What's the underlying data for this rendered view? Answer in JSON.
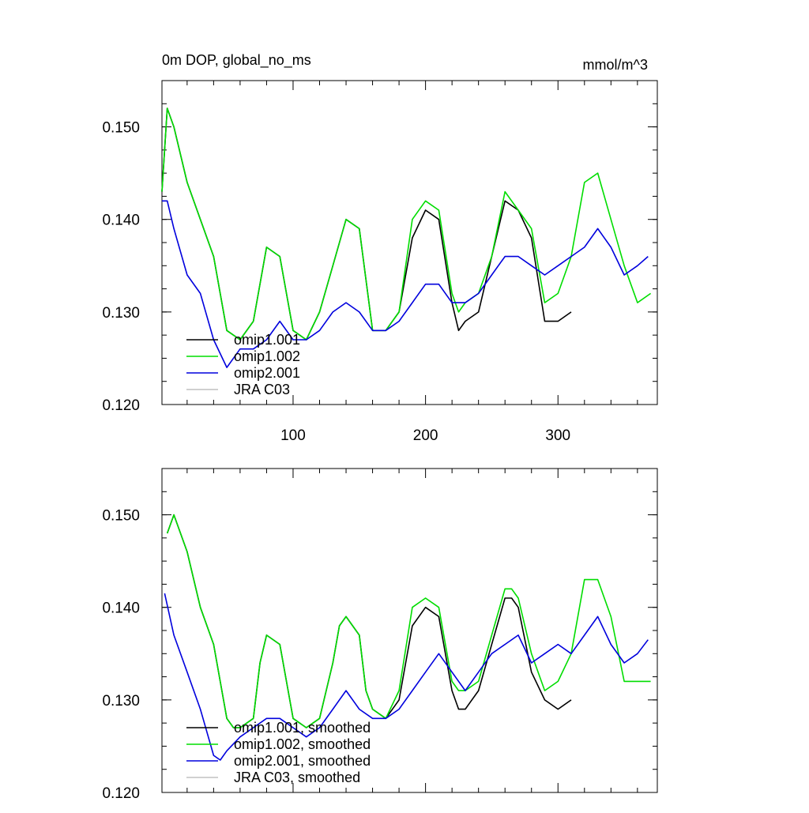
{
  "chart_data": [
    {
      "type": "line",
      "title": "0m DOP, global_no_ms",
      "units": "mmol/m^3",
      "xlim": [
        1,
        375
      ],
      "ylim": [
        0.12,
        0.155
      ],
      "x_tick_labels": [
        "100",
        "200",
        "300"
      ],
      "x_ticks": [
        100,
        200,
        300
      ],
      "y_tick_labels": [
        "0.120",
        "0.130",
        "0.140",
        "0.150"
      ],
      "y_ticks": [
        0.12,
        0.13,
        0.14,
        0.15
      ],
      "legend": {
        "placement": "bottom-left",
        "entries": [
          "omip1.001",
          "omip1.002",
          "omip2.001",
          "JRA C03"
        ]
      },
      "series": [
        {
          "name": "omip1.001",
          "color": "#000000",
          "x": [
            1,
            5,
            10,
            20,
            30,
            40,
            50,
            60,
            70,
            80,
            90,
            100,
            110,
            120,
            130,
            140,
            150,
            160,
            170,
            180,
            190,
            200,
            210,
            220,
            225,
            230,
            240,
            250,
            260,
            270,
            280,
            290,
            300,
            310
          ],
          "y": [
            0.143,
            0.152,
            0.15,
            0.144,
            0.14,
            0.136,
            0.128,
            0.127,
            0.129,
            0.137,
            0.136,
            0.128,
            0.127,
            0.13,
            0.135,
            0.14,
            0.139,
            0.128,
            0.128,
            0.13,
            0.138,
            0.141,
            0.14,
            0.131,
            0.128,
            0.129,
            0.13,
            0.136,
            0.142,
            0.141,
            0.138,
            0.129,
            0.129,
            0.13
          ]
        },
        {
          "name": "omip1.002",
          "color": "#00dd00",
          "x": [
            1,
            5,
            10,
            20,
            30,
            40,
            50,
            60,
            70,
            80,
            90,
            100,
            110,
            120,
            130,
            140,
            150,
            160,
            170,
            180,
            190,
            200,
            210,
            220,
            225,
            230,
            240,
            250,
            260,
            270,
            280,
            290,
            300,
            310,
            320,
            330,
            340,
            350,
            360,
            370
          ],
          "y": [
            0.143,
            0.152,
            0.15,
            0.144,
            0.14,
            0.136,
            0.128,
            0.127,
            0.129,
            0.137,
            0.136,
            0.128,
            0.127,
            0.13,
            0.135,
            0.14,
            0.139,
            0.128,
            0.128,
            0.13,
            0.14,
            0.142,
            0.141,
            0.132,
            0.13,
            0.131,
            0.132,
            0.136,
            0.143,
            0.141,
            0.139,
            0.131,
            0.132,
            0.136,
            0.144,
            0.145,
            0.14,
            0.135,
            0.131,
            0.132
          ]
        },
        {
          "name": "omip2.001",
          "color": "#0000dd",
          "x": [
            1,
            5,
            10,
            20,
            30,
            40,
            50,
            60,
            70,
            80,
            90,
            100,
            110,
            120,
            130,
            140,
            150,
            160,
            170,
            180,
            190,
            200,
            210,
            220,
            230,
            240,
            250,
            260,
            270,
            280,
            290,
            300,
            310,
            320,
            330,
            340,
            350,
            360,
            368
          ],
          "y": [
            0.142,
            0.142,
            0.139,
            0.134,
            0.132,
            0.127,
            0.124,
            0.126,
            0.126,
            0.127,
            0.129,
            0.127,
            0.127,
            0.128,
            0.13,
            0.131,
            0.13,
            0.128,
            0.128,
            0.129,
            0.131,
            0.133,
            0.133,
            0.131,
            0.131,
            0.132,
            0.134,
            0.136,
            0.136,
            0.135,
            0.134,
            0.135,
            0.136,
            0.137,
            0.139,
            0.137,
            0.134,
            0.135,
            0.136
          ]
        },
        {
          "name": "JRA C03",
          "color": "#c0c0c0",
          "x": [],
          "y": []
        }
      ]
    },
    {
      "type": "line",
      "title": "",
      "xlim": [
        1,
        375
      ],
      "ylim": [
        0.12,
        0.155
      ],
      "x_ticks": [
        100,
        200,
        300
      ],
      "y_tick_labels": [
        "0.120",
        "0.130",
        "0.140",
        "0.150"
      ],
      "y_ticks": [
        0.12,
        0.13,
        0.14,
        0.15
      ],
      "legend": {
        "placement": "bottom-left",
        "entries": [
          "omip1.001, smoothed",
          "omip1.002, smoothed",
          "omip2.001, smoothed",
          "JRA C03, smoothed"
        ]
      },
      "series": [
        {
          "name": "omip1.001, smoothed",
          "color": "#000000",
          "x": [
            5,
            10,
            20,
            30,
            40,
            50,
            55,
            60,
            70,
            75,
            80,
            90,
            100,
            110,
            120,
            130,
            135,
            140,
            150,
            155,
            160,
            170,
            180,
            190,
            200,
            210,
            220,
            225,
            230,
            240,
            250,
            260,
            265,
            270,
            280,
            290,
            300,
            310
          ],
          "y": [
            0.148,
            0.15,
            0.146,
            0.14,
            0.136,
            0.128,
            0.127,
            0.127,
            0.128,
            0.134,
            0.137,
            0.136,
            0.128,
            0.127,
            0.128,
            0.134,
            0.138,
            0.139,
            0.137,
            0.131,
            0.129,
            0.128,
            0.13,
            0.138,
            0.14,
            0.139,
            0.131,
            0.129,
            0.129,
            0.131,
            0.136,
            0.141,
            0.141,
            0.14,
            0.133,
            0.13,
            0.129,
            0.13
          ]
        },
        {
          "name": "omip1.002, smoothed",
          "color": "#00dd00",
          "x": [
            5,
            10,
            20,
            30,
            40,
            50,
            55,
            60,
            70,
            75,
            80,
            90,
            100,
            110,
            120,
            130,
            135,
            140,
            150,
            155,
            160,
            170,
            180,
            190,
            200,
            210,
            220,
            225,
            230,
            240,
            250,
            260,
            265,
            270,
            280,
            290,
            300,
            310,
            320,
            330,
            340,
            350,
            360,
            370
          ],
          "y": [
            0.148,
            0.15,
            0.146,
            0.14,
            0.136,
            0.128,
            0.127,
            0.127,
            0.128,
            0.134,
            0.137,
            0.136,
            0.128,
            0.127,
            0.128,
            0.134,
            0.138,
            0.139,
            0.137,
            0.131,
            0.129,
            0.128,
            0.131,
            0.14,
            0.141,
            0.14,
            0.132,
            0.131,
            0.131,
            0.132,
            0.137,
            0.142,
            0.142,
            0.141,
            0.135,
            0.131,
            0.132,
            0.135,
            0.143,
            0.143,
            0.139,
            0.132,
            0.132,
            0.132
          ]
        },
        {
          "name": "omip2.001, smoothed",
          "color": "#0000dd",
          "x": [
            3,
            10,
            20,
            30,
            40,
            45,
            50,
            60,
            70,
            80,
            90,
            100,
            110,
            120,
            130,
            140,
            150,
            160,
            170,
            180,
            190,
            200,
            210,
            220,
            230,
            240,
            250,
            260,
            270,
            280,
            290,
            300,
            310,
            320,
            330,
            340,
            350,
            360,
            368
          ],
          "y": [
            0.1415,
            0.137,
            0.133,
            0.129,
            0.124,
            0.1235,
            0.1245,
            0.126,
            0.127,
            0.128,
            0.128,
            0.127,
            0.126,
            0.127,
            0.129,
            0.131,
            0.129,
            0.128,
            0.128,
            0.129,
            0.131,
            0.133,
            0.135,
            0.133,
            0.131,
            0.133,
            0.135,
            0.136,
            0.137,
            0.134,
            0.135,
            0.136,
            0.135,
            0.137,
            0.139,
            0.136,
            0.134,
            0.135,
            0.1365
          ]
        },
        {
          "name": "JRA C03, smoothed",
          "color": "#c0c0c0",
          "x": [],
          "y": []
        }
      ]
    }
  ]
}
